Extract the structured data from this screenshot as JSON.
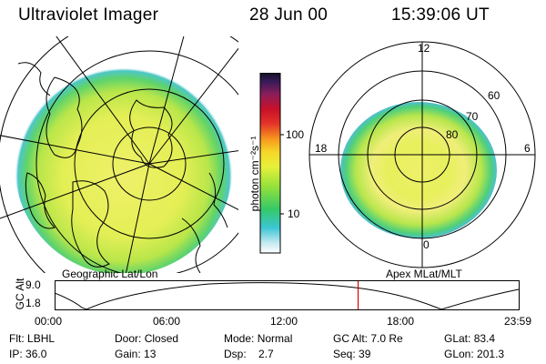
{
  "header": {
    "instrument": "Ultraviolet Imager",
    "date": "28 Jun 00",
    "time": "15:39:06 UT"
  },
  "panels": {
    "left_label": "Geographic Lat/Lon",
    "right_label": "Apex  MLat/MLT"
  },
  "colorbar": {
    "unit_label": "photon cm⁻²s⁻¹",
    "ticks": [
      "100",
      "10"
    ]
  },
  "polar_grid": {
    "mlt_labels": [
      "12",
      "18",
      "6",
      "0"
    ],
    "mlat_labels": [
      "60",
      "70",
      "80"
    ]
  },
  "altitude_plot": {
    "axis_title": "GC Alt",
    "y_ticks": [
      "9.0",
      "1.8"
    ],
    "x_ticks": [
      "00:00",
      "06:00",
      "12:00",
      "18:00",
      "23:59"
    ],
    "current_time_fraction": 0.653
  },
  "info": {
    "row1": [
      {
        "label": "Flt:",
        "value": "LBHL"
      },
      {
        "label": "Door:",
        "value": "Closed"
      },
      {
        "label": "Mode:",
        "value": "Normal"
      },
      {
        "label": "GC Alt:",
        "value": "7.0 Re"
      },
      {
        "label": "GLat:",
        "value": "83.4"
      }
    ],
    "row2": [
      {
        "label": "IP:",
        "value": "36.0"
      },
      {
        "label": "Gain:",
        "value": "13"
      },
      {
        "label": "Dsp:",
        "value": "2.7"
      },
      {
        "label": "Seq:",
        "value": "39"
      },
      {
        "label": "GLon:",
        "value": "201.3"
      }
    ]
  }
}
